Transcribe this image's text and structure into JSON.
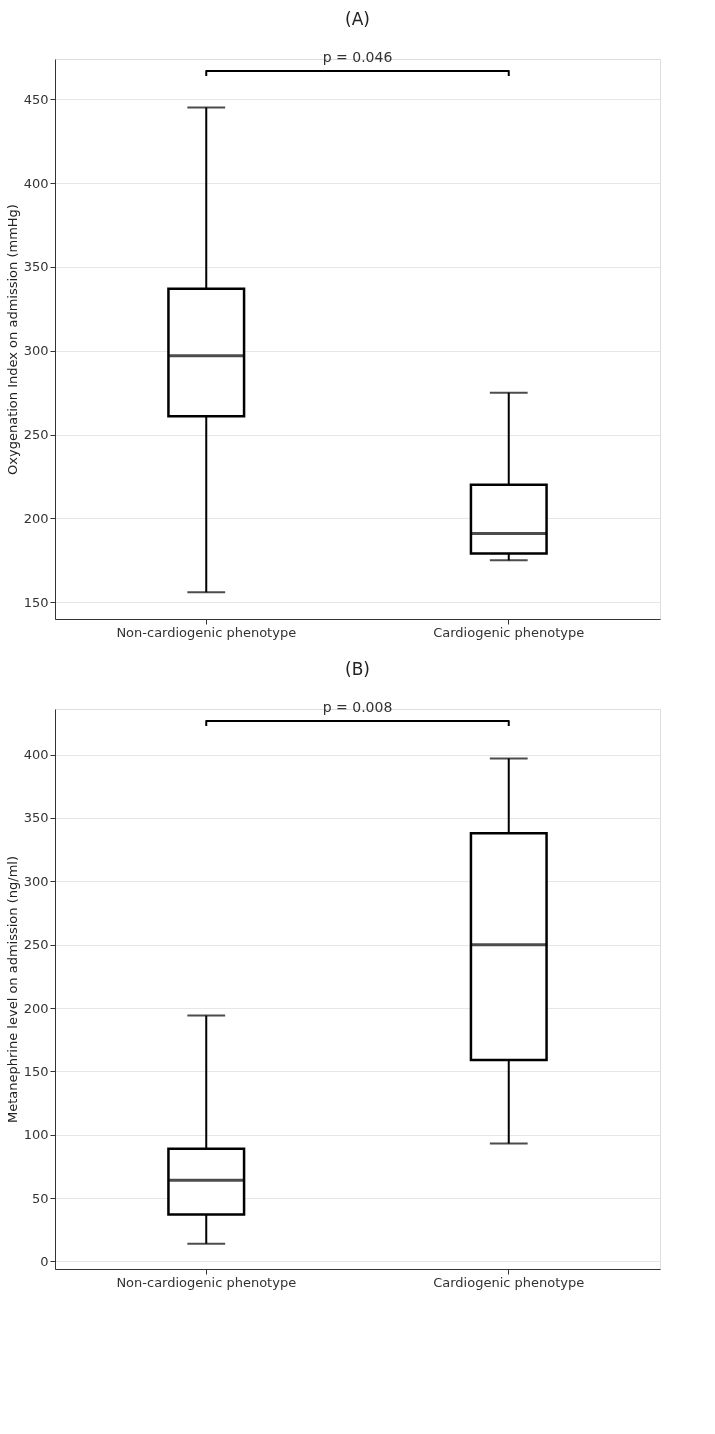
{
  "chart_data": [
    {
      "type": "box",
      "title": "(A)",
      "ylabel": "Oxygenation Index on admission (mmHg)",
      "categories": [
        "Non-cardiogenic phenotype",
        "Cardiogenic phenotype"
      ],
      "boxes": [
        {
          "low": 156,
          "q1": 261,
          "median": 297,
          "q3": 337,
          "high": 445
        },
        {
          "low": 175,
          "q1": 179,
          "median": 191,
          "q3": 220,
          "high": 275
        }
      ],
      "ylim": [
        140,
        474
      ],
      "yticks": [
        150,
        200,
        250,
        300,
        350,
        400,
        450
      ],
      "grid": "y",
      "annotations": [
        "p = 0.046"
      ]
    },
    {
      "type": "box",
      "title": "(B)",
      "ylabel": "Metanephrine level on admission (ng/ml)",
      "categories": [
        "Non-cardiogenic phenotype",
        "Cardiogenic phenotype"
      ],
      "boxes": [
        {
          "low": 14,
          "q1": 37,
          "median": 64,
          "q3": 89,
          "high": 194
        },
        {
          "low": 93,
          "q1": 159,
          "median": 250,
          "q3": 338,
          "high": 397
        }
      ],
      "ylim": [
        -6,
        436
      ],
      "yticks": [
        0,
        50,
        100,
        150,
        200,
        250,
        300,
        350,
        400
      ],
      "grid": "y",
      "annotations": [
        "p = 0.008"
      ]
    }
  ]
}
